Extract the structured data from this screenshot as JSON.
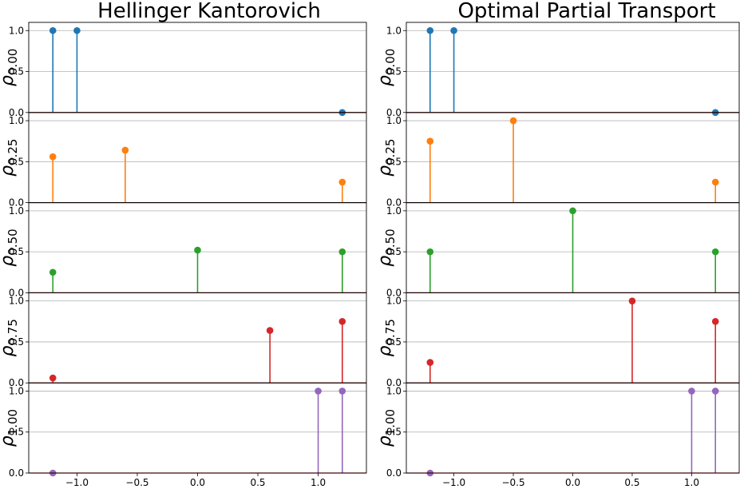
{
  "chart_data": [
    {
      "type": "stem",
      "title": "Hellinger Kantorovich",
      "xlim": [
        -1.4,
        1.4
      ],
      "ylim": [
        0,
        1.1
      ],
      "xticks": [
        -1.0,
        -0.5,
        0.0,
        0.5,
        1.0
      ],
      "xtick_labels": [
        "−1.0",
        "−0.5",
        "0.0",
        "0.5",
        "1.0"
      ],
      "yticks": [
        0,
        0.5,
        1.0
      ],
      "ytick_labels": [
        "0.0",
        "0.5",
        "1.0"
      ],
      "grid": "y",
      "panels": [
        {
          "ylabel": "ρ",
          "ylabel_sub": "0.00",
          "color": "#1f77b4",
          "x": [
            -1.2,
            -1.0,
            1.2
          ],
          "y": [
            1.0,
            1.0,
            0.0
          ]
        },
        {
          "ylabel": "ρ",
          "ylabel_sub": "0.25",
          "color": "#ff7f0e",
          "x": [
            -1.2,
            -0.6,
            1.2
          ],
          "y": [
            0.56,
            0.64,
            0.25
          ]
        },
        {
          "ylabel": "ρ",
          "ylabel_sub": "0.50",
          "color": "#2ca02c",
          "x": [
            -1.2,
            0.0,
            1.2
          ],
          "y": [
            0.25,
            0.52,
            0.5
          ]
        },
        {
          "ylabel": "ρ",
          "ylabel_sub": "0.75",
          "color": "#d62728",
          "x": [
            -1.2,
            0.6,
            1.2
          ],
          "y": [
            0.06,
            0.64,
            0.75
          ]
        },
        {
          "ylabel": "ρ",
          "ylabel_sub": "1.00",
          "color": "#9467bd",
          "x": [
            -1.2,
            1.0,
            1.2
          ],
          "y": [
            0.0,
            1.0,
            1.0
          ]
        }
      ]
    },
    {
      "type": "stem",
      "title": "Optimal Partial Transport",
      "xlim": [
        -1.4,
        1.4
      ],
      "ylim": [
        0,
        1.1
      ],
      "xticks": [
        -1.0,
        -0.5,
        0.0,
        0.5,
        1.0
      ],
      "xtick_labels": [
        "−1.0",
        "−0.5",
        "0.0",
        "0.5",
        "1.0"
      ],
      "yticks": [
        0,
        0.5,
        1.0
      ],
      "ytick_labels": [
        "0.0",
        "0.5",
        "1.0"
      ],
      "grid": "y",
      "panels": [
        {
          "ylabel": "ρ",
          "ylabel_sub": "0.00",
          "color": "#1f77b4",
          "x": [
            -1.2,
            -1.0,
            1.2
          ],
          "y": [
            1.0,
            1.0,
            0.0
          ]
        },
        {
          "ylabel": "ρ",
          "ylabel_sub": "0.25",
          "color": "#ff7f0e",
          "x": [
            -1.2,
            -0.5,
            1.2
          ],
          "y": [
            0.75,
            1.0,
            0.25
          ]
        },
        {
          "ylabel": "ρ",
          "ylabel_sub": "0.50",
          "color": "#2ca02c",
          "x": [
            -1.2,
            0.0,
            1.2
          ],
          "y": [
            0.5,
            1.0,
            0.5
          ]
        },
        {
          "ylabel": "ρ",
          "ylabel_sub": "0.75",
          "color": "#d62728",
          "x": [
            -1.2,
            0.5,
            1.2
          ],
          "y": [
            0.25,
            1.0,
            0.75
          ]
        },
        {
          "ylabel": "ρ",
          "ylabel_sub": "1.00",
          "color": "#9467bd",
          "x": [
            -1.2,
            1.0,
            1.2
          ],
          "y": [
            0.0,
            1.0,
            1.0
          ]
        }
      ]
    }
  ]
}
